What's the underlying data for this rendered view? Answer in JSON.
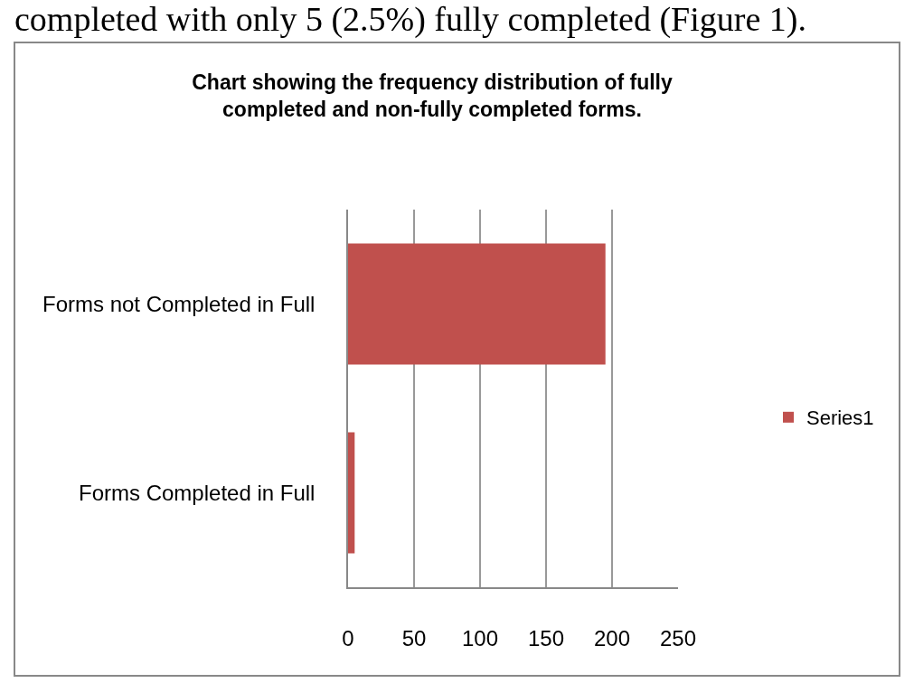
{
  "chart_data": {
    "type": "bar",
    "orientation": "horizontal",
    "title": "Chart showing the frequency distribution of fully completed and non-fully completed forms.",
    "annotations": [
      "completed with only 5 (2.5%) fully completed (Figure 1)."
    ],
    "categories": [
      "Forms not Completed in Full",
      "Forms Completed in Full"
    ],
    "series": [
      {
        "name": "Series1",
        "color": "#c0504d",
        "values": [
          195,
          5
        ]
      }
    ],
    "xlim": [
      0,
      250
    ],
    "xticks": [
      0,
      50,
      100,
      150,
      200,
      250
    ],
    "grid": "x",
    "legend": "right"
  }
}
